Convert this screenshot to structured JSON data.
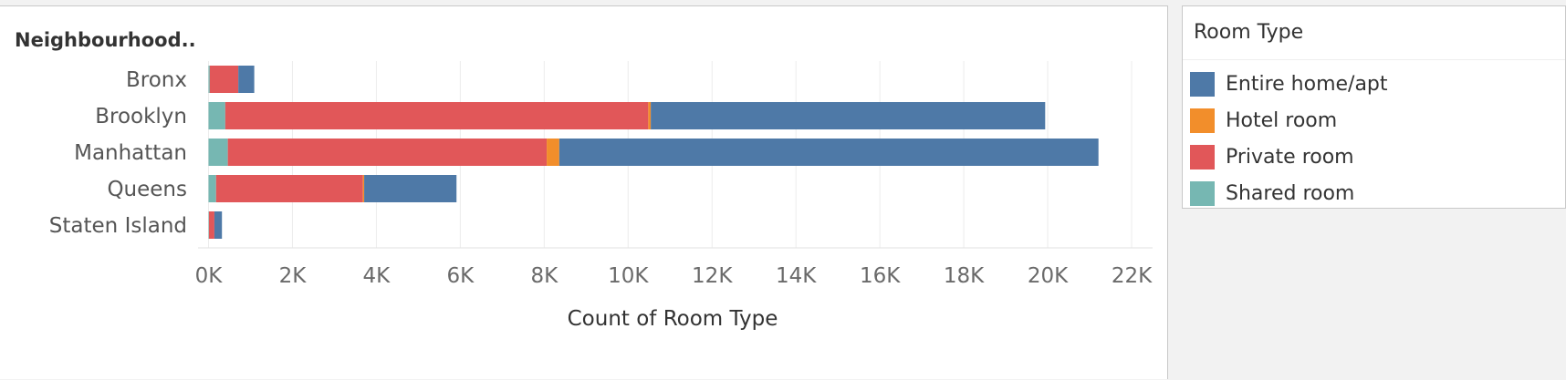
{
  "chart_data": {
    "type": "bar",
    "orientation": "horizontal",
    "stacked": true,
    "row_header": "Neighbourhood..",
    "xlabel": "Count of Room Type",
    "categories": [
      "Bronx",
      "Brooklyn",
      "Manhattan",
      "Queens",
      "Staten Island"
    ],
    "series": [
      {
        "name": "Shared room",
        "color": "#76b7b2",
        "values": [
          30,
          400,
          460,
          180,
          10
        ]
      },
      {
        "name": "Private room",
        "color": "#e15759",
        "values": [
          680,
          10080,
          7600,
          3500,
          130
        ]
      },
      {
        "name": "Hotel room",
        "color": "#f28e2b",
        "values": [
          0,
          60,
          300,
          30,
          0
        ]
      },
      {
        "name": "Entire home/apt",
        "color": "#4e79a7",
        "values": [
          380,
          9400,
          12850,
          2200,
          180
        ]
      }
    ],
    "xlim": [
      -250,
      22500
    ],
    "xticks": [
      0,
      2000,
      4000,
      6000,
      8000,
      10000,
      12000,
      14000,
      16000,
      18000,
      20000,
      22000
    ],
    "xtick_labels": [
      "0K",
      "2K",
      "4K",
      "6K",
      "8K",
      "10K",
      "12K",
      "14K",
      "16K",
      "18K",
      "20K",
      "22K"
    ],
    "grid": "vertical",
    "legend_position": "right"
  },
  "legend": {
    "title": "Room Type",
    "items": [
      {
        "label": "Entire home/apt",
        "color": "#4e79a7"
      },
      {
        "label": "Hotel room",
        "color": "#f28e2b"
      },
      {
        "label": "Private room",
        "color": "#e15759"
      },
      {
        "label": "Shared room",
        "color": "#76b7b2"
      }
    ]
  }
}
